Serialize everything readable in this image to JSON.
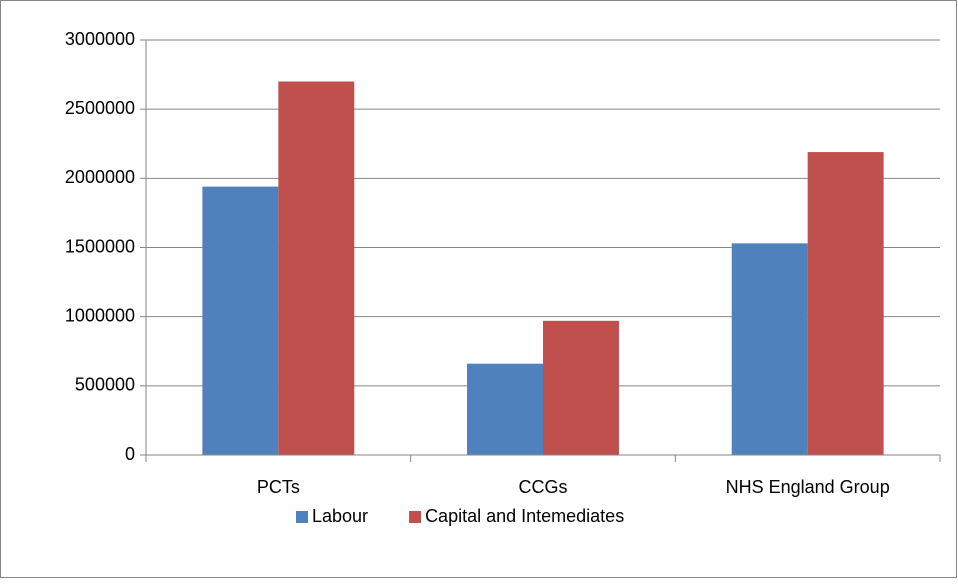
{
  "chart_data": {
    "type": "bar",
    "categories": [
      "PCTs",
      "CCGs",
      "NHS England Group"
    ],
    "series": [
      {
        "name": "Labour",
        "color": "#4f81bd",
        "values": [
          1940000,
          660000,
          1530000
        ]
      },
      {
        "name": "Capital and Intemediates",
        "color": "#c0504d",
        "values": [
          2700000,
          970000,
          2190000
        ]
      }
    ],
    "ylim": [
      0,
      3000000
    ],
    "yticks": [
      0,
      500000,
      1000000,
      1500000,
      2000000,
      2500000,
      3000000
    ],
    "grid": true,
    "legend": "bottom"
  }
}
